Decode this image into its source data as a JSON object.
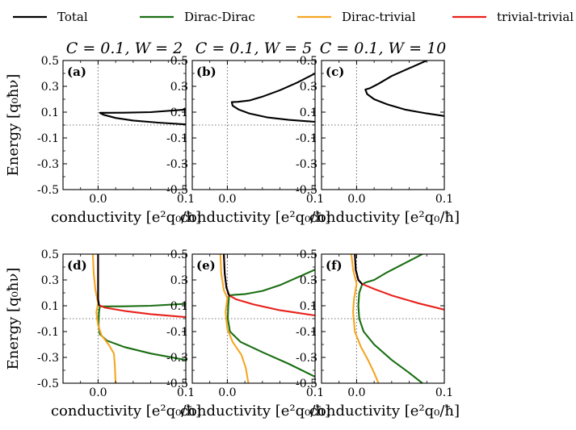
{
  "legend": [
    {
      "label": "Total",
      "color": "#000000"
    },
    {
      "label": "Dirac-Dirac",
      "color": "#1a6e12"
    },
    {
      "label": "Dirac-trivial",
      "color": "#f5a623"
    },
    {
      "label": "trivial-trivial",
      "color": "#e8201a"
    }
  ],
  "axes": {
    "ylabel": "Energy [q₀ħν]",
    "xlabel": "conductivity [e²q₀/ħ]",
    "xticks": [
      "0.0",
      "0.1"
    ],
    "yticks": [
      "0.5",
      "0.3",
      "0.1",
      "-0.1",
      "-0.3",
      "-0.5"
    ]
  },
  "chart_data": [
    {
      "type": "line",
      "panel": "(a)",
      "title": "C = 0.1, W = 2",
      "xlim": [
        -0.04,
        0.1
      ],
      "ylim": [
        -0.5,
        0.5
      ],
      "series": [
        {
          "name": "Total",
          "color": "#000000",
          "points": [
            [
              0.1,
              0.12
            ],
            [
              0.06,
              0.1
            ],
            [
              0.03,
              0.096
            ],
            [
              0.012,
              0.095
            ],
            [
              0.002,
              0.095
            ],
            [
              0.006,
              0.08
            ],
            [
              0.02,
              0.055
            ],
            [
              0.04,
              0.035
            ],
            [
              0.07,
              0.018
            ],
            [
              0.1,
              0.005
            ]
          ]
        }
      ]
    },
    {
      "type": "line",
      "panel": "(b)",
      "title": "C = 0.1, W = 5",
      "xlim": [
        -0.04,
        0.1
      ],
      "ylim": [
        -0.5,
        0.5
      ],
      "series": [
        {
          "name": "Total",
          "color": "#000000",
          "points": [
            [
              0.1,
              0.4
            ],
            [
              0.08,
              0.33
            ],
            [
              0.06,
              0.27
            ],
            [
              0.04,
              0.22
            ],
            [
              0.025,
              0.19
            ],
            [
              0.012,
              0.18
            ],
            [
              0.005,
              0.178
            ],
            [
              0.006,
              0.15
            ],
            [
              0.013,
              0.12
            ],
            [
              0.025,
              0.09
            ],
            [
              0.045,
              0.06
            ],
            [
              0.07,
              0.04
            ],
            [
              0.1,
              0.025
            ]
          ]
        }
      ]
    },
    {
      "type": "line",
      "panel": "(c)",
      "title": "C = 0.1, W = 10",
      "xlim": [
        -0.04,
        0.1
      ],
      "ylim": [
        -0.5,
        0.5
      ],
      "series": [
        {
          "name": "Total",
          "color": "#000000",
          "points": [
            [
              0.08,
              0.5
            ],
            [
              0.06,
              0.44
            ],
            [
              0.04,
              0.38
            ],
            [
              0.025,
              0.32
            ],
            [
              0.015,
              0.285
            ],
            [
              0.01,
              0.275
            ],
            [
              0.012,
              0.24
            ],
            [
              0.02,
              0.2
            ],
            [
              0.035,
              0.16
            ],
            [
              0.055,
              0.12
            ],
            [
              0.08,
              0.09
            ],
            [
              0.1,
              0.07
            ]
          ]
        }
      ]
    },
    {
      "type": "line",
      "panel": "(d)",
      "title": "",
      "xlim": [
        -0.04,
        0.1
      ],
      "ylim": [
        -0.5,
        0.5
      ],
      "series": [
        {
          "name": "Dirac-Dirac",
          "color": "#1a6e12",
          "points": [
            [
              0.1,
              0.115
            ],
            [
              0.06,
              0.1
            ],
            [
              0.03,
              0.096
            ],
            [
              0.008,
              0.095
            ],
            [
              0.002,
              0.095
            ],
            [
              0.001,
              0.05
            ],
            [
              0.0005,
              -0.05
            ],
            [
              0.002,
              -0.12
            ],
            [
              0.01,
              -0.17
            ],
            [
              0.03,
              -0.22
            ],
            [
              0.06,
              -0.27
            ],
            [
              0.1,
              -0.32
            ]
          ]
        },
        {
          "name": "Dirac-trivial",
          "color": "#f5a623",
          "points": [
            [
              -0.006,
              0.5
            ],
            [
              -0.005,
              0.35
            ],
            [
              -0.003,
              0.22
            ],
            [
              0.0,
              0.12
            ],
            [
              -0.002,
              0.05
            ],
            [
              0.0,
              -0.05
            ],
            [
              0.004,
              -0.13
            ],
            [
              0.012,
              -0.2
            ],
            [
              0.018,
              -0.27
            ],
            [
              0.019,
              -0.35
            ],
            [
              0.02,
              -0.5
            ]
          ]
        },
        {
          "name": "trivial-trivial",
          "color": "#e8201a",
          "points": [
            [
              0.0,
              0.5
            ],
            [
              0.0,
              0.3
            ],
            [
              0.0,
              0.15
            ],
            [
              0.001,
              0.105
            ],
            [
              0.008,
              0.085
            ],
            [
              0.03,
              0.06
            ],
            [
              0.06,
              0.035
            ],
            [
              0.1,
              0.012
            ]
          ]
        },
        {
          "name": "Total",
          "color": "#000000",
          "points": [
            [
              0.0,
              0.5
            ],
            [
              0.0,
              0.3
            ],
            [
              0.0,
              0.15
            ],
            [
              0.001,
              0.105
            ]
          ]
        }
      ]
    },
    {
      "type": "line",
      "panel": "(e)",
      "title": "",
      "xlim": [
        -0.04,
        0.1
      ],
      "ylim": [
        -0.5,
        0.5
      ],
      "series": [
        {
          "name": "Dirac-Dirac",
          "color": "#1a6e12",
          "points": [
            [
              0.1,
              0.38
            ],
            [
              0.08,
              0.32
            ],
            [
              0.06,
              0.26
            ],
            [
              0.04,
              0.215
            ],
            [
              0.02,
              0.19
            ],
            [
              0.008,
              0.185
            ],
            [
              0.002,
              0.18
            ],
            [
              0.001,
              0.1
            ],
            [
              0.0005,
              0.0
            ],
            [
              0.003,
              -0.1
            ],
            [
              0.015,
              -0.18
            ],
            [
              0.04,
              -0.26
            ],
            [
              0.07,
              -0.35
            ],
            [
              0.1,
              -0.45
            ]
          ]
        },
        {
          "name": "Dirac-trivial",
          "color": "#f5a623",
          "points": [
            [
              -0.008,
              0.5
            ],
            [
              -0.007,
              0.35
            ],
            [
              -0.004,
              0.22
            ],
            [
              0.0,
              0.16
            ],
            [
              -0.002,
              0.05
            ],
            [
              0.0,
              -0.08
            ],
            [
              0.006,
              -0.18
            ],
            [
              0.016,
              -0.28
            ],
            [
              0.021,
              -0.38
            ],
            [
              0.024,
              -0.5
            ]
          ]
        },
        {
          "name": "trivial-trivial",
          "color": "#e8201a",
          "points": [
            [
              -0.004,
              0.5
            ],
            [
              -0.003,
              0.35
            ],
            [
              -0.001,
              0.24
            ],
            [
              0.002,
              0.18
            ],
            [
              0.01,
              0.15
            ],
            [
              0.03,
              0.11
            ],
            [
              0.06,
              0.065
            ],
            [
              0.1,
              0.025
            ]
          ]
        },
        {
          "name": "Total",
          "color": "#000000",
          "points": [
            [
              -0.004,
              0.5
            ],
            [
              -0.003,
              0.35
            ],
            [
              -0.001,
              0.24
            ],
            [
              0.002,
              0.18
            ]
          ]
        }
      ]
    },
    {
      "type": "line",
      "panel": "(f)",
      "title": "",
      "xlim": [
        -0.04,
        0.1
      ],
      "ylim": [
        -0.5,
        0.5
      ],
      "series": [
        {
          "name": "Dirac-Dirac",
          "color": "#1a6e12",
          "points": [
            [
              0.075,
              0.5
            ],
            [
              0.055,
              0.43
            ],
            [
              0.035,
              0.36
            ],
            [
              0.02,
              0.3
            ],
            [
              0.01,
              0.28
            ],
            [
              0.006,
              0.26
            ],
            [
              0.003,
              0.2
            ],
            [
              0.002,
              0.1
            ],
            [
              0.003,
              0.0
            ],
            [
              0.008,
              -0.1
            ],
            [
              0.02,
              -0.2
            ],
            [
              0.04,
              -0.32
            ],
            [
              0.06,
              -0.42
            ],
            [
              0.075,
              -0.5
            ]
          ]
        },
        {
          "name": "Dirac-trivial",
          "color": "#f5a623",
          "points": [
            [
              -0.006,
              0.5
            ],
            [
              -0.004,
              0.38
            ],
            [
              0.0,
              0.27
            ],
            [
              -0.003,
              0.15
            ],
            [
              -0.004,
              0.05
            ],
            [
              -0.002,
              -0.1
            ],
            [
              0.005,
              -0.22
            ],
            [
              0.013,
              -0.32
            ],
            [
              0.02,
              -0.42
            ],
            [
              0.025,
              -0.5
            ]
          ]
        },
        {
          "name": "trivial-trivial",
          "color": "#e8201a",
          "points": [
            [
              -0.002,
              0.5
            ],
            [
              -0.001,
              0.38
            ],
            [
              0.002,
              0.3
            ],
            [
              0.006,
              0.27
            ],
            [
              0.02,
              0.23
            ],
            [
              0.04,
              0.18
            ],
            [
              0.07,
              0.12
            ],
            [
              0.1,
              0.07
            ]
          ]
        },
        {
          "name": "Total",
          "color": "#000000",
          "points": [
            [
              -0.002,
              0.5
            ],
            [
              -0.001,
              0.38
            ],
            [
              0.002,
              0.3
            ],
            [
              0.006,
              0.27
            ]
          ]
        }
      ]
    }
  ]
}
